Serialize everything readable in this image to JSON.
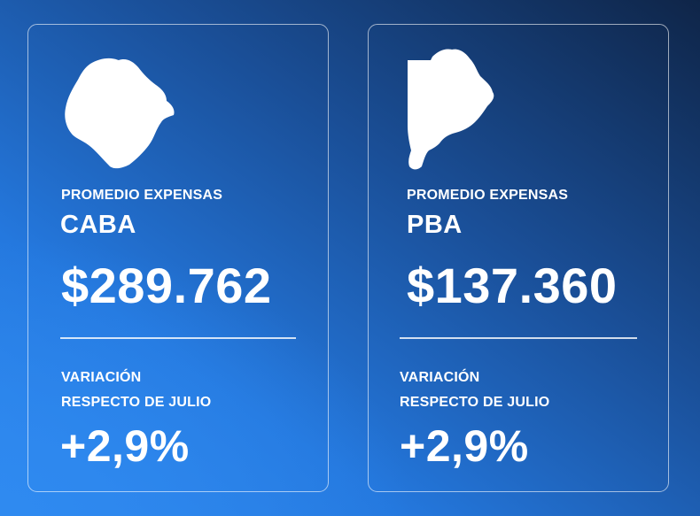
{
  "cards": [
    {
      "eyebrow": "PROMEDIO EXPENSAS",
      "region": "CABA",
      "amount": "$289.762",
      "variation_line1": "VARIACIÓN",
      "variation_line2": "RESPECTO DE JULIO",
      "variation_value": "+2,9%",
      "map_icon": "caba-map-icon"
    },
    {
      "eyebrow": "PROMEDIO EXPENSAS",
      "region": "PBA",
      "amount": "$137.360",
      "variation_line1": "VARIACIÓN",
      "variation_line2": "RESPECTO DE JULIO",
      "variation_value": "+2,9%",
      "map_icon": "pba-map-icon"
    }
  ],
  "colors": {
    "text": "#ffffff",
    "background_dark": "#0f2548",
    "background_light": "#2d86ee"
  }
}
